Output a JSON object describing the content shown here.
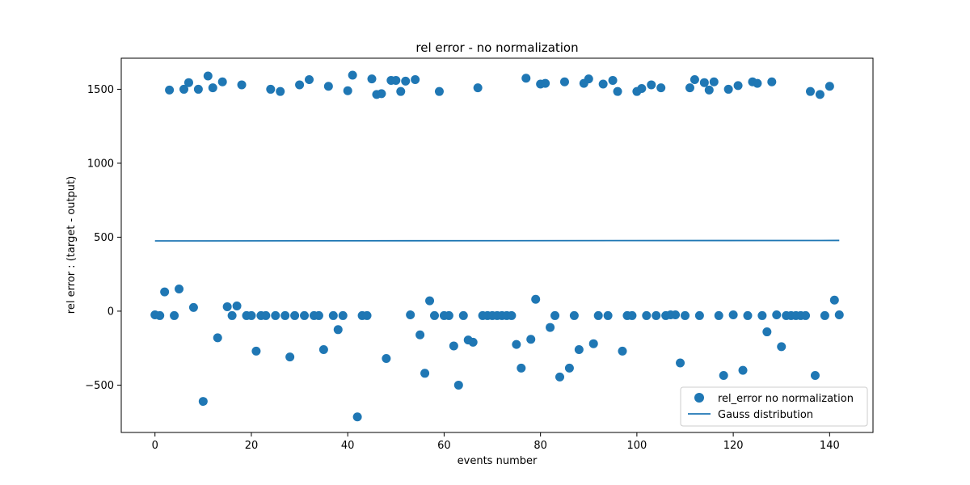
{
  "chart_data": {
    "type": "scatter",
    "title": "rel error - no normalization",
    "xlabel": "events number",
    "ylabel": "rel error : (target - output)",
    "xlim": [
      -7,
      149
    ],
    "ylim": [
      -820,
      1710
    ],
    "xticks": [
      0,
      20,
      40,
      60,
      80,
      100,
      120,
      140
    ],
    "xtick_labels": [
      "0",
      "20",
      "40",
      "60",
      "80",
      "100",
      "120",
      "140"
    ],
    "yticks": [
      -500,
      0,
      500,
      1000,
      1500
    ],
    "ytick_labels": [
      "−500",
      "0",
      "500",
      "1000",
      "1500"
    ],
    "grid": false,
    "legend_position": "lower-right",
    "colors": {
      "series": "#1f77b4"
    },
    "series": [
      {
        "name": "rel_error no normalization",
        "kind": "scatter",
        "x": [
          0,
          1,
          2,
          3,
          4,
          5,
          6,
          7,
          8,
          9,
          10,
          11,
          12,
          13,
          14,
          15,
          16,
          17,
          18,
          19,
          20,
          21,
          22,
          23,
          24,
          25,
          26,
          27,
          28,
          29,
          30,
          31,
          32,
          33,
          34,
          35,
          36,
          37,
          38,
          39,
          40,
          41,
          42,
          43,
          44,
          45,
          46,
          47,
          48,
          49,
          50,
          51,
          52,
          53,
          54,
          55,
          56,
          57,
          58,
          59,
          60,
          61,
          62,
          63,
          64,
          65,
          66,
          67,
          68,
          69,
          70,
          71,
          72,
          73,
          74,
          75,
          76,
          77,
          78,
          79,
          80,
          81,
          82,
          83,
          84,
          85,
          86,
          87,
          88,
          89,
          90,
          91,
          92,
          93,
          94,
          95,
          96,
          97,
          98,
          99,
          100,
          101,
          102,
          103,
          104,
          105,
          106,
          107,
          108,
          109,
          110,
          111,
          112,
          113,
          114,
          115,
          116,
          117,
          118,
          119,
          120,
          121,
          122,
          123,
          124,
          125,
          126,
          127,
          128,
          129,
          130,
          131,
          132,
          133,
          134,
          135,
          136,
          137,
          138,
          139,
          140,
          141,
          142
        ],
        "y": [
          -25,
          -30,
          130,
          1495,
          -30,
          150,
          1500,
          1545,
          25,
          1500,
          -610,
          1590,
          1510,
          -180,
          1550,
          30,
          -30,
          35,
          1530,
          -30,
          -30,
          -270,
          -30,
          -30,
          1500,
          -30,
          1485,
          -30,
          -310,
          -30,
          1530,
          -30,
          1565,
          -30,
          -30,
          -260,
          1520,
          -30,
          -125,
          -30,
          1490,
          1595,
          -715,
          -30,
          -30,
          1570,
          1465,
          1470,
          -320,
          1560,
          1560,
          1485,
          1555,
          -25,
          1565,
          -160,
          -420,
          70,
          -30,
          1485,
          -30,
          -30,
          -235,
          -500,
          -30,
          -195,
          -210,
          1510,
          -30,
          -30,
          -30,
          -30,
          -30,
          -30,
          -30,
          -225,
          -385,
          1575,
          -190,
          80,
          1535,
          1540,
          -110,
          -30,
          -445,
          1550,
          -385,
          -30,
          -260,
          1540,
          1570,
          -220,
          -30,
          1535,
          -30,
          1560,
          1485,
          -270,
          -30,
          -30,
          1485,
          1505,
          -30,
          1530,
          -30,
          1510,
          -30,
          -25,
          -25,
          -350,
          -30,
          1510,
          1565,
          -30,
          1545,
          1495,
          1550,
          -30,
          -435,
          1500,
          -25,
          1525,
          -400,
          -30,
          1550,
          1540,
          -30,
          -140,
          1550,
          -25,
          -240,
          -30,
          -30,
          -30,
          -30,
          -30,
          1485,
          -435,
          1465,
          -30,
          1520,
          75,
          -25
        ]
      },
      {
        "name": "Gauss distribution",
        "kind": "line",
        "x": [
          0,
          142
        ],
        "y": [
          475,
          478
        ]
      }
    ]
  }
}
